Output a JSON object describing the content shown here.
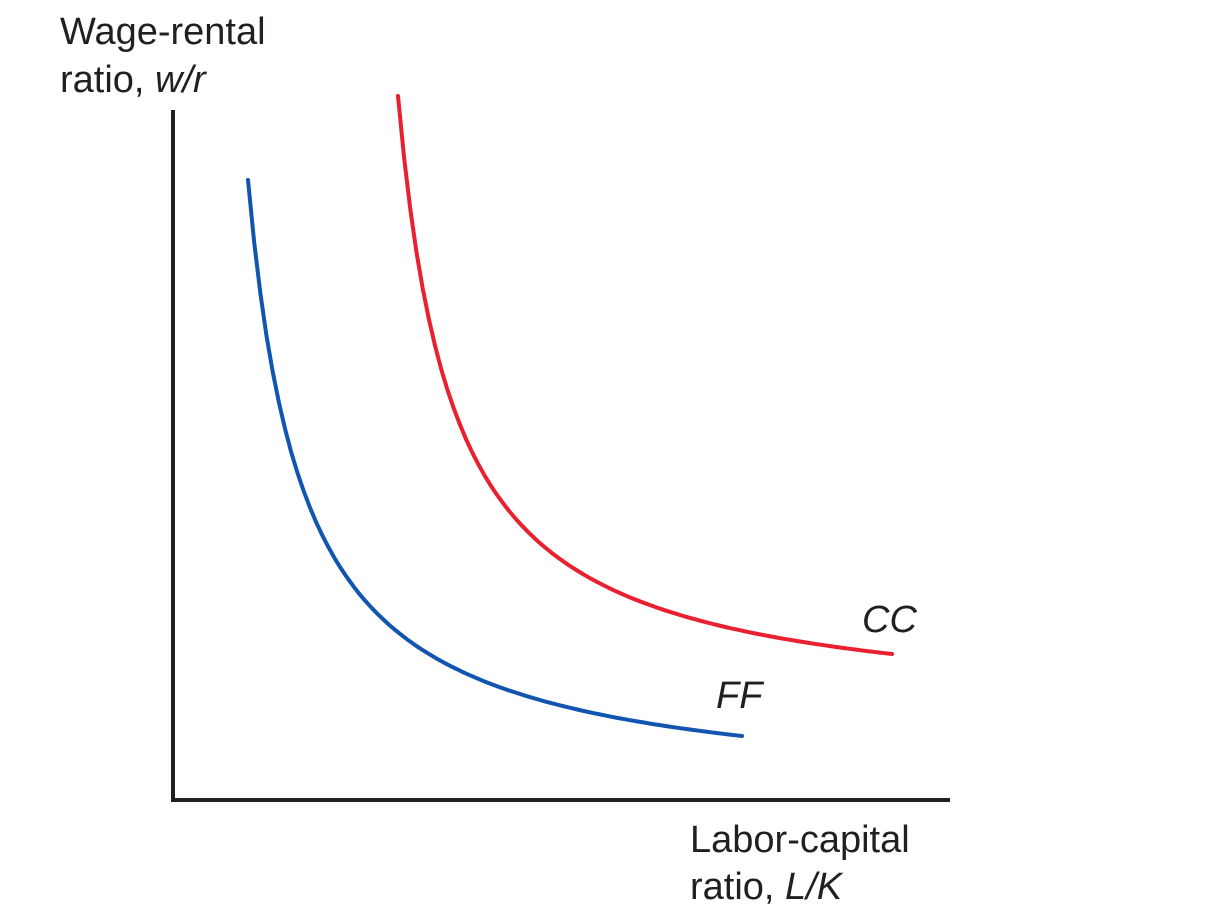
{
  "chart_data": {
    "type": "line",
    "title": "",
    "ylabel_line1": "Wage-rental",
    "ylabel_line2_prefix": "ratio, ",
    "ylabel_line2_symbol": "w/r",
    "xlabel_line1": "Labor-capital",
    "xlabel_line2_prefix": "ratio, ",
    "xlabel_line2_symbol": "L/K",
    "grid": false,
    "legend": "none (curves labeled directly)",
    "series": [
      {
        "name": "CC",
        "color": "#e8202f",
        "points": [
          [
            1.0,
            10.0
          ],
          [
            1.5,
            6.67
          ],
          [
            2.0,
            5.0
          ],
          [
            3.0,
            3.33
          ],
          [
            4.0,
            2.5
          ],
          [
            5.0,
            2.0
          ],
          [
            6.0,
            1.67
          ],
          [
            7.0,
            1.43
          ],
          [
            8.0,
            1.25
          ],
          [
            9.0,
            1.11
          ],
          [
            10.0,
            1.0
          ]
        ]
      },
      {
        "name": "FF",
        "color": "#1155b0",
        "points": [
          [
            1.0,
            8.0
          ],
          [
            1.5,
            5.33
          ],
          [
            2.0,
            4.0
          ],
          [
            3.0,
            2.67
          ],
          [
            4.0,
            2.0
          ],
          [
            5.0,
            1.6
          ],
          [
            6.0,
            1.33
          ],
          [
            7.0,
            1.14
          ],
          [
            8.0,
            1.0
          ],
          [
            9.0,
            0.89
          ],
          [
            10.0,
            0.8
          ]
        ]
      }
    ]
  }
}
